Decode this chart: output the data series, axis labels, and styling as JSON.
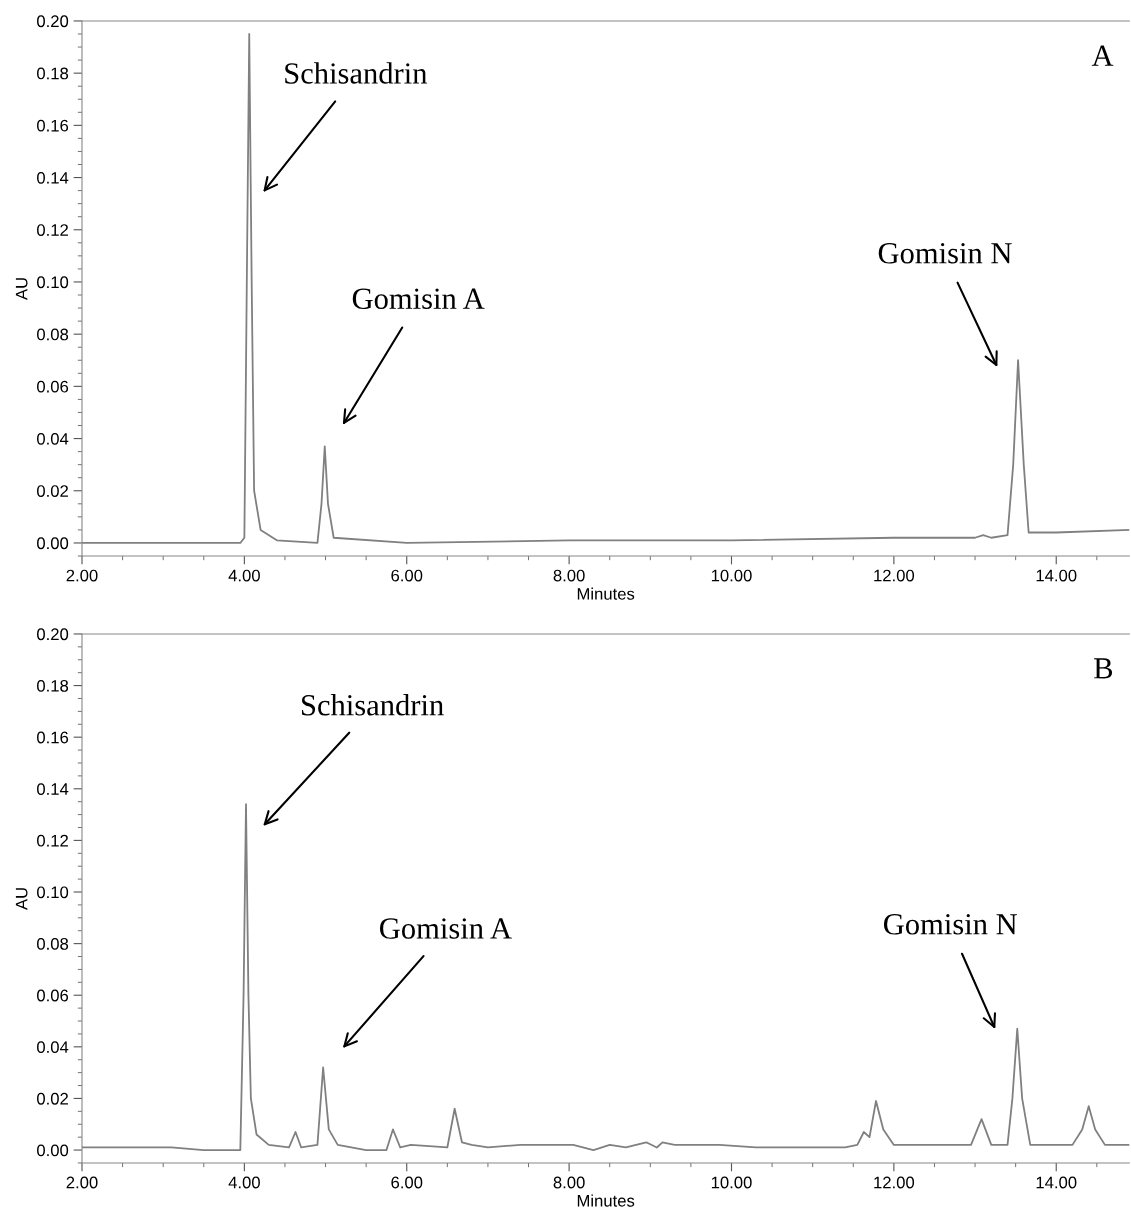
{
  "chart_data": [
    {
      "type": "line",
      "xlabel": "Minutes",
      "ylabel": "AU",
      "xlim": [
        2,
        14.9
      ],
      "ylim": [
        -0.005,
        0.2
      ],
      "xticks": [
        {
          "value": 2,
          "label": "2.00"
        },
        {
          "value": 4,
          "label": "4.00"
        },
        {
          "value": 6,
          "label": "6.00"
        },
        {
          "value": 8,
          "label": "8.00"
        },
        {
          "value": 10,
          "label": "10.00"
        },
        {
          "value": 12,
          "label": "12.00"
        },
        {
          "value": 14,
          "label": "14.00"
        }
      ],
      "yticks": [
        {
          "value": 0,
          "label": "0.00"
        },
        {
          "value": 0.02,
          "label": "0.02"
        },
        {
          "value": 0.04,
          "label": "0.04"
        },
        {
          "value": 0.06,
          "label": "0.06"
        },
        {
          "value": 0.08,
          "label": "0.08"
        },
        {
          "value": 0.1,
          "label": "0.10"
        },
        {
          "value": 0.12,
          "label": "0.12"
        },
        {
          "value": 0.14,
          "label": "0.14"
        },
        {
          "value": 0.16,
          "label": "0.16"
        },
        {
          "value": 0.18,
          "label": "0.18"
        },
        {
          "value": 0.2,
          "label": "0.20"
        }
      ],
      "grid": false,
      "marker": "none",
      "line_style": "solid",
      "series": [
        {
          "color": "#808080",
          "x": [
            2,
            3,
            3.95,
            4.0,
            4.03,
            4.06,
            4.09,
            4.12,
            4.2,
            4.4,
            4.9,
            4.95,
            4.99,
            5.03,
            5.1,
            6,
            8,
            10,
            12,
            13.0,
            13.1,
            13.2,
            13.4,
            13.47,
            13.53,
            13.6,
            13.66,
            14,
            14.9
          ],
          "values": [
            0,
            0,
            0,
            0.002,
            0.1,
            0.195,
            0.1,
            0.02,
            0.005,
            0.001,
            0,
            0.015,
            0.037,
            0.015,
            0.002,
            0,
            0.001,
            0.001,
            0.002,
            0.002,
            0.003,
            0.002,
            0.003,
            0.03,
            0.07,
            0.03,
            0.004,
            0.004,
            0.005
          ]
        }
      ],
      "annotations": [
        "A",
        "Schisandrin",
        "Gomisin A",
        "Gomisin N"
      ]
    },
    {
      "type": "line",
      "xlabel": "Minutes",
      "ylabel": "AU",
      "xlim": [
        2,
        14.9
      ],
      "ylim": [
        -0.005,
        0.2
      ],
      "xticks": [
        {
          "value": 2,
          "label": "2.00"
        },
        {
          "value": 4,
          "label": "4.00"
        },
        {
          "value": 6,
          "label": "6.00"
        },
        {
          "value": 8,
          "label": "8.00"
        },
        {
          "value": 10,
          "label": "10.00"
        },
        {
          "value": 12,
          "label": "12.00"
        },
        {
          "value": 14,
          "label": "14.00"
        }
      ],
      "yticks": [
        {
          "value": 0,
          "label": "0.00"
        },
        {
          "value": 0.02,
          "label": "0.02"
        },
        {
          "value": 0.04,
          "label": "0.04"
        },
        {
          "value": 0.06,
          "label": "0.06"
        },
        {
          "value": 0.08,
          "label": "0.08"
        },
        {
          "value": 0.1,
          "label": "0.10"
        },
        {
          "value": 0.12,
          "label": "0.12"
        },
        {
          "value": 0.14,
          "label": "0.14"
        },
        {
          "value": 0.16,
          "label": "0.16"
        },
        {
          "value": 0.18,
          "label": "0.18"
        },
        {
          "value": 0.2,
          "label": "0.20"
        }
      ],
      "grid": false,
      "marker": "none",
      "line_style": "solid",
      "series": [
        {
          "color": "#808080",
          "x": [
            2,
            2.5,
            3.1,
            3.5,
            3.95,
            3.99,
            4.02,
            4.05,
            4.08,
            4.15,
            4.3,
            4.55,
            4.63,
            4.7,
            4.9,
            4.97,
            5.04,
            5.15,
            5.5,
            5.75,
            5.83,
            5.92,
            6.05,
            6.5,
            6.59,
            6.68,
            6.8,
            7.0,
            7.4,
            8.05,
            8.3,
            8.5,
            8.7,
            8.95,
            9.08,
            9.15,
            9.3,
            9.85,
            10.3,
            11.4,
            11.55,
            11.63,
            11.7,
            11.78,
            11.87,
            12.0,
            12.5,
            12.95,
            13.08,
            13.2,
            13.4,
            13.46,
            13.52,
            13.58,
            13.68,
            14.2,
            14.32,
            14.4,
            14.48,
            14.6,
            14.9
          ],
          "values": [
            0.001,
            0.001,
            0.001,
            0.0,
            0.0,
            0.06,
            0.134,
            0.06,
            0.02,
            0.006,
            0.002,
            0.001,
            0.007,
            0.001,
            0.002,
            0.032,
            0.008,
            0.002,
            0.0,
            0.0,
            0.008,
            0.001,
            0.002,
            0.001,
            0.016,
            0.003,
            0.002,
            0.001,
            0.002,
            0.002,
            0.0,
            0.002,
            0.001,
            0.003,
            0.001,
            0.003,
            0.002,
            0.002,
            0.001,
            0.001,
            0.002,
            0.007,
            0.005,
            0.019,
            0.008,
            0.002,
            0.002,
            0.002,
            0.012,
            0.002,
            0.002,
            0.02,
            0.047,
            0.02,
            0.002,
            0.002,
            0.008,
            0.017,
            0.008,
            0.002,
            0.002
          ]
        }
      ],
      "annotations": [
        "B",
        "Schisandrin",
        "Gomisin A",
        "Gomisin N"
      ]
    }
  ]
}
